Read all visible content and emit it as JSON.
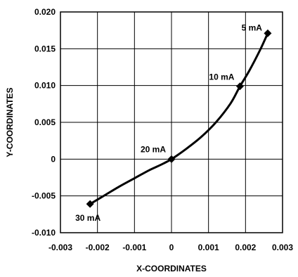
{
  "chart_data": {
    "type": "line",
    "title": "",
    "xlabel": "X-COORDINATES",
    "ylabel": "Y-COORDINATES",
    "xlim": [
      -0.003,
      0.003
    ],
    "ylim": [
      -0.01,
      0.02
    ],
    "x_ticks": [
      -0.003,
      -0.002,
      -0.001,
      0,
      0.001,
      0.002,
      0.003
    ],
    "x_tick_labels": [
      "-0.003",
      "-0.002",
      "-0.001",
      "0",
      "0.001",
      "0.002",
      "0.003"
    ],
    "y_ticks": [
      -0.01,
      -0.005,
      0,
      0.005,
      0.01,
      0.015,
      0.02
    ],
    "y_tick_labels": [
      "-0.010",
      "-0.005",
      "0",
      "0.005",
      "0.010",
      "0.015",
      "0.020"
    ],
    "grid": true,
    "series": [
      {
        "curve_x": [
          -0.0022,
          -0.0018,
          -0.0014,
          -0.001,
          -0.0006,
          -0.0003,
          0,
          0.0004,
          0.0008,
          0.0012,
          0.0016,
          0.00185,
          0.0021,
          0.0024,
          0.0026
        ],
        "curve_y": [
          -0.0061,
          -0.0049,
          -0.0037,
          -0.0026,
          -0.0015,
          -0.0008,
          0,
          0.0014,
          0.003,
          0.005,
          0.0076,
          0.0099,
          0.012,
          0.0149,
          0.0171
        ]
      }
    ],
    "points": [
      {
        "label": "5 mA",
        "x": 0.0026,
        "y": 0.0171
      },
      {
        "label": "10 mA",
        "x": 0.00185,
        "y": 0.0099
      },
      {
        "label": "20 mA",
        "x": 0.0,
        "y": 0.0
      },
      {
        "label": "30 mA",
        "x": -0.0022,
        "y": -0.0061
      }
    ]
  }
}
